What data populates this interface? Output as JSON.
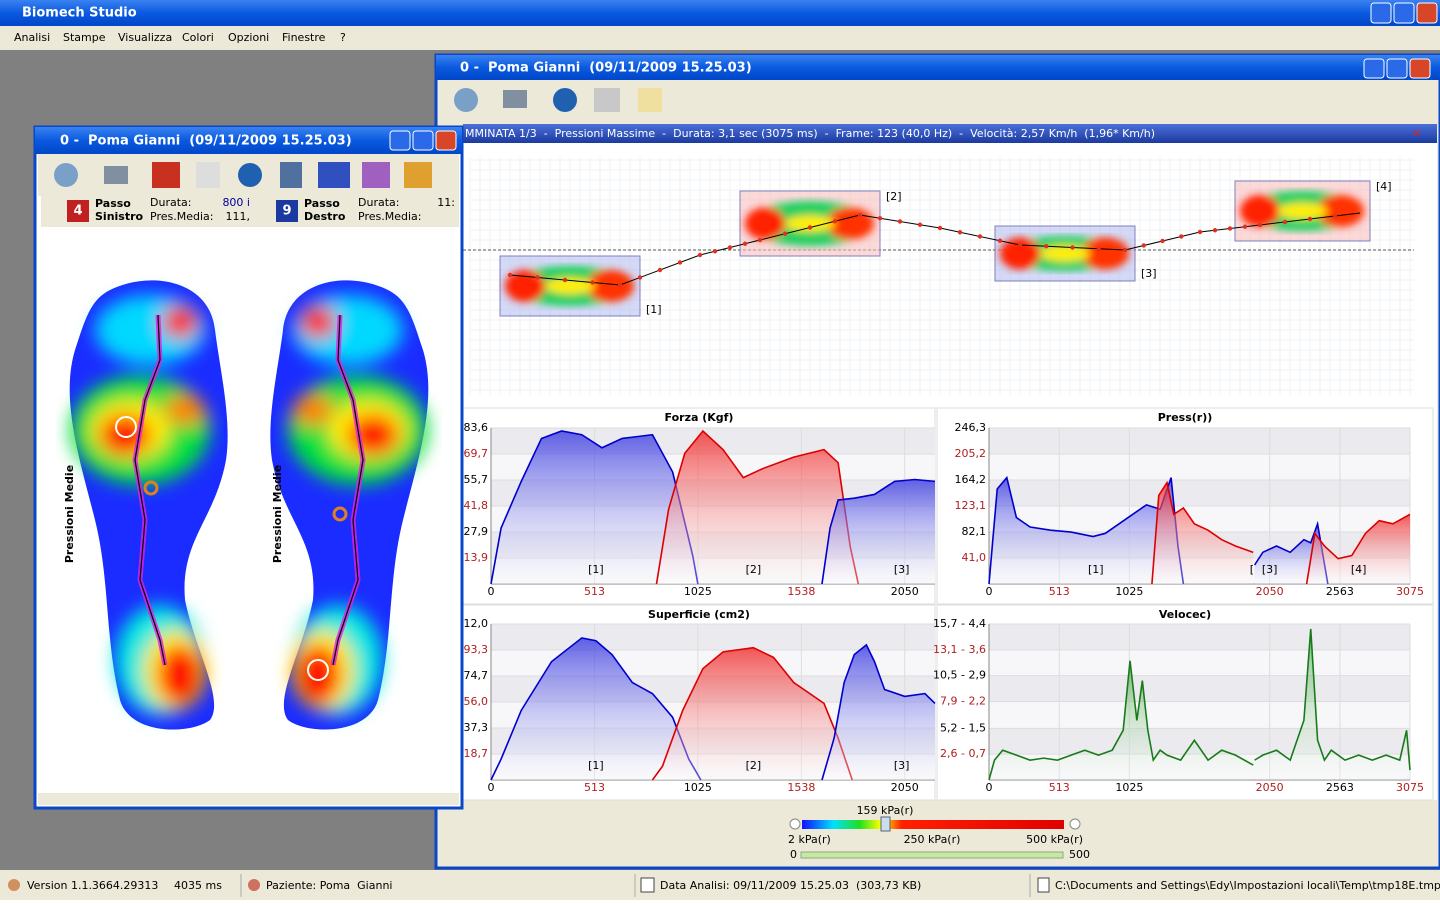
{
  "app": {
    "title": "Biomech Studio",
    "menu": [
      "Analisi",
      "Stampe",
      "Visualizza",
      "Colori",
      "Opzioni",
      "Finestre",
      "?"
    ]
  },
  "right_window": {
    "title": "0 -  Poma Gianni  (09/11/2009 15.25.03)",
    "info_bar": "MMINATA 1/3  -  Pressioni Massime  -  Durata: 3,1 sec (3075 ms)  -  Frame: 123 (40,0 Hz)  -  Velocità: 2,57 Km/h  (1,96* Km/h)",
    "steps": [
      "[1]",
      "[2]",
      "[3]",
      "[4]"
    ],
    "scale": {
      "current": "159 kPa(r)",
      "min": "2 kPa(r)",
      "mid": "250 kPa(r)",
      "max": "500 kPa(r)",
      "range_min": "0",
      "range_max": "500"
    }
  },
  "left_window": {
    "title": "0 -  Poma Gianni  (09/11/2009 15.25.03)",
    "left_step": {
      "number": "4",
      "name1": "Passo",
      "name2": "Sinistro",
      "duration_label": "Durata:",
      "duration": "800 i",
      "pressure_label": "Pres.Media:",
      "pressure": "111,"
    },
    "right_step": {
      "number": "9",
      "name1": "Passo",
      "name2": "Destro",
      "duration_label": "Durata:",
      "duration": "11:",
      "pressure_label": "Pres.Media:"
    },
    "heatmap_labels": [
      "Pressioni Medie",
      "Pressioni Medie"
    ]
  },
  "status_bar": {
    "version": "Version 1.1.3664.29313",
    "time": "4035 ms",
    "patient": "Paziente: Poma  Gianni",
    "date": "Data Analisi: 09/11/2009 15.25.03  (303,73 KB)",
    "file": "C:\\Documents and Settings\\Edy\\Impostazioni locali\\Temp\\tmp18E.tmp"
  },
  "chart_data": [
    {
      "type": "area",
      "title": "Forza (Kgf)",
      "xlim": [
        0,
        2200
      ],
      "ylim": [
        0,
        83.6
      ],
      "xticks": [
        0,
        513,
        1025,
        1538,
        2050
      ],
      "yticks": [
        {
          "value": 83.6,
          "label": "83,6"
        },
        {
          "value": 69.7,
          "label": "69,7"
        },
        {
          "value": 55.7,
          "label": "55,7"
        },
        {
          "value": 41.8,
          "label": "41,8"
        },
        {
          "value": 27.9,
          "label": "27,9"
        },
        {
          "value": 13.9,
          "label": "13,9"
        }
      ],
      "annotations": [
        {
          "text": "[1]",
          "x": 520
        },
        {
          "text": "[2]",
          "x": 1300
        },
        {
          "text": "[3]",
          "x": 2035
        }
      ],
      "series": [
        {
          "color": "#0000cc",
          "x": [
            0,
            50,
            150,
            250,
            350,
            450,
            550,
            650,
            800,
            900,
            1000,
            1025
          ],
          "values": [
            0,
            30,
            55,
            78,
            82,
            80,
            73,
            78,
            80,
            60,
            15,
            0
          ]
        },
        {
          "color": "#dd0000",
          "x": [
            820,
            880,
            960,
            1050,
            1150,
            1250,
            1350,
            1500,
            1650,
            1720,
            1780,
            1820
          ],
          "values": [
            0,
            40,
            70,
            82,
            72,
            57,
            62,
            68,
            72,
            65,
            20,
            0
          ]
        },
        {
          "color": "#0000cc",
          "x": [
            1640,
            1680,
            1720,
            1800,
            1900,
            2000,
            2100,
            2200
          ],
          "values": [
            0,
            30,
            45,
            46,
            48,
            55,
            56,
            55
          ]
        }
      ]
    },
    {
      "type": "area",
      "title": "Press(r))",
      "xlim": [
        0,
        3075
      ],
      "ylim": [
        0,
        246.3
      ],
      "xticks": [
        0,
        513,
        1025,
        2050,
        2563,
        3075
      ],
      "yticks": [
        {
          "value": 246.3,
          "label": "246,3"
        },
        {
          "value": 205.2,
          "label": "205,2"
        },
        {
          "value": 164.2,
          "label": "164,2"
        },
        {
          "value": 123.1,
          "label": "123,1"
        },
        {
          "value": 82.1,
          "label": "82,1"
        },
        {
          "value": 41.0,
          "label": "41,0"
        }
      ],
      "annotations": [
        {
          "text": "[1]",
          "x": 780
        },
        {
          "text": "[",
          "x": 1920
        },
        {
          "text": "[3]",
          "x": 2050
        },
        {
          "text": "[4]",
          "x": 2700
        }
      ],
      "series": [
        {
          "color": "#0000cc",
          "x": [
            0,
            60,
            130,
            200,
            300,
            450,
            600,
            760,
            850,
            950,
            1050,
            1150,
            1250,
            1330,
            1380,
            1420
          ],
          "values": [
            0,
            150,
            168,
            105,
            90,
            85,
            82,
            75,
            80,
            95,
            110,
            125,
            118,
            168,
            60,
            0
          ]
        },
        {
          "color": "#dd0000",
          "x": [
            1190,
            1240,
            1300,
            1350,
            1420,
            1500,
            1600,
            1700,
            1800,
            1930
          ],
          "values": [
            0,
            140,
            160,
            110,
            120,
            95,
            85,
            70,
            60,
            50
          ]
        },
        {
          "color": "#0000cc",
          "x": [
            1940,
            2000,
            2100,
            2200,
            2300,
            2350,
            2400,
            2475
          ],
          "values": [
            30,
            50,
            60,
            50,
            70,
            65,
            95,
            0
          ]
        },
        {
          "color": "#dd0000",
          "x": [
            2320,
            2380,
            2450,
            2550,
            2650,
            2750,
            2850,
            2950,
            3075
          ],
          "values": [
            0,
            80,
            60,
            40,
            45,
            80,
            100,
            95,
            110
          ]
        }
      ]
    },
    {
      "type": "area",
      "title": "Superficie (cm2)",
      "xlim": [
        0,
        2200
      ],
      "ylim": [
        0,
        112
      ],
      "xticks": [
        0,
        513,
        1025,
        1538,
        2050
      ],
      "yticks": [
        {
          "value": 112,
          "label": "112,0"
        },
        {
          "value": 93.3,
          "label": "93,3"
        },
        {
          "value": 74.7,
          "label": "74,7"
        },
        {
          "value": 56,
          "label": "56,0"
        },
        {
          "value": 37.3,
          "label": "37,3"
        },
        {
          "value": 18.7,
          "label": "18,7"
        }
      ],
      "annotations": [
        {
          "text": "[1]",
          "x": 520
        },
        {
          "text": "[2]",
          "x": 1300
        },
        {
          "text": "[3]",
          "x": 2035
        }
      ],
      "series": [
        {
          "color": "#0000cc",
          "x": [
            0,
            50,
            150,
            300,
            450,
            520,
            600,
            700,
            800,
            900,
            980,
            1040
          ],
          "values": [
            0,
            15,
            50,
            85,
            102,
            100,
            90,
            70,
            62,
            45,
            15,
            0
          ]
        },
        {
          "color": "#dd0000",
          "x": [
            800,
            850,
            950,
            1050,
            1150,
            1300,
            1400,
            1500,
            1650,
            1720,
            1790
          ],
          "values": [
            0,
            10,
            50,
            80,
            92,
            95,
            88,
            70,
            55,
            30,
            0
          ]
        },
        {
          "color": "#0000cc",
          "x": [
            1640,
            1700,
            1750,
            1800,
            1860,
            1900,
            1950,
            2050,
            2150,
            2200
          ],
          "values": [
            0,
            30,
            70,
            90,
            97,
            85,
            65,
            60,
            62,
            55
          ]
        }
      ]
    },
    {
      "type": "area",
      "title": "Velocec)",
      "xlim": [
        0,
        3075
      ],
      "ylim": [
        0,
        15.7
      ],
      "xticks": [
        0,
        513,
        1025,
        2050,
        2563,
        3075
      ],
      "yticks": [
        {
          "value": 15.7,
          "label": "15,7 - 4,4"
        },
        {
          "value": 13.1,
          "label": "13,1 - 3,6"
        },
        {
          "value": 10.5,
          "label": "10,5 - 2,9"
        },
        {
          "value": 7.9,
          "label": "7,9 - 2,2"
        },
        {
          "value": 5.2,
          "label": "5,2 - 1,5"
        },
        {
          "value": 2.6,
          "label": "2,6 - 0,7"
        }
      ],
      "annotations": [],
      "series": [
        {
          "color": "#1a7a1a",
          "x": [
            0,
            40,
            100,
            200,
            300,
            400,
            500,
            600,
            700,
            800,
            900,
            980,
            1030,
            1080,
            1120,
            1160,
            1200,
            1250,
            1300,
            1400,
            1500,
            1600,
            1700,
            1800,
            1930,
            1935,
            1940,
            2000,
            2100,
            2200,
            2300,
            2350,
            2400,
            2450,
            2500,
            2600,
            2700,
            2800,
            2900,
            3000,
            3050,
            3075
          ],
          "values": [
            0,
            2,
            3,
            2.5,
            2,
            2.2,
            2,
            2.5,
            3,
            2.5,
            3,
            5,
            12,
            6,
            10,
            5,
            2,
            3,
            2.5,
            2,
            4,
            2,
            3,
            2.5,
            1.5,
            null,
            2,
            2.5,
            3,
            2,
            6,
            15.2,
            4,
            2,
            3,
            2,
            2.5,
            2,
            2.5,
            2,
            5,
            1
          ]
        }
      ]
    }
  ]
}
